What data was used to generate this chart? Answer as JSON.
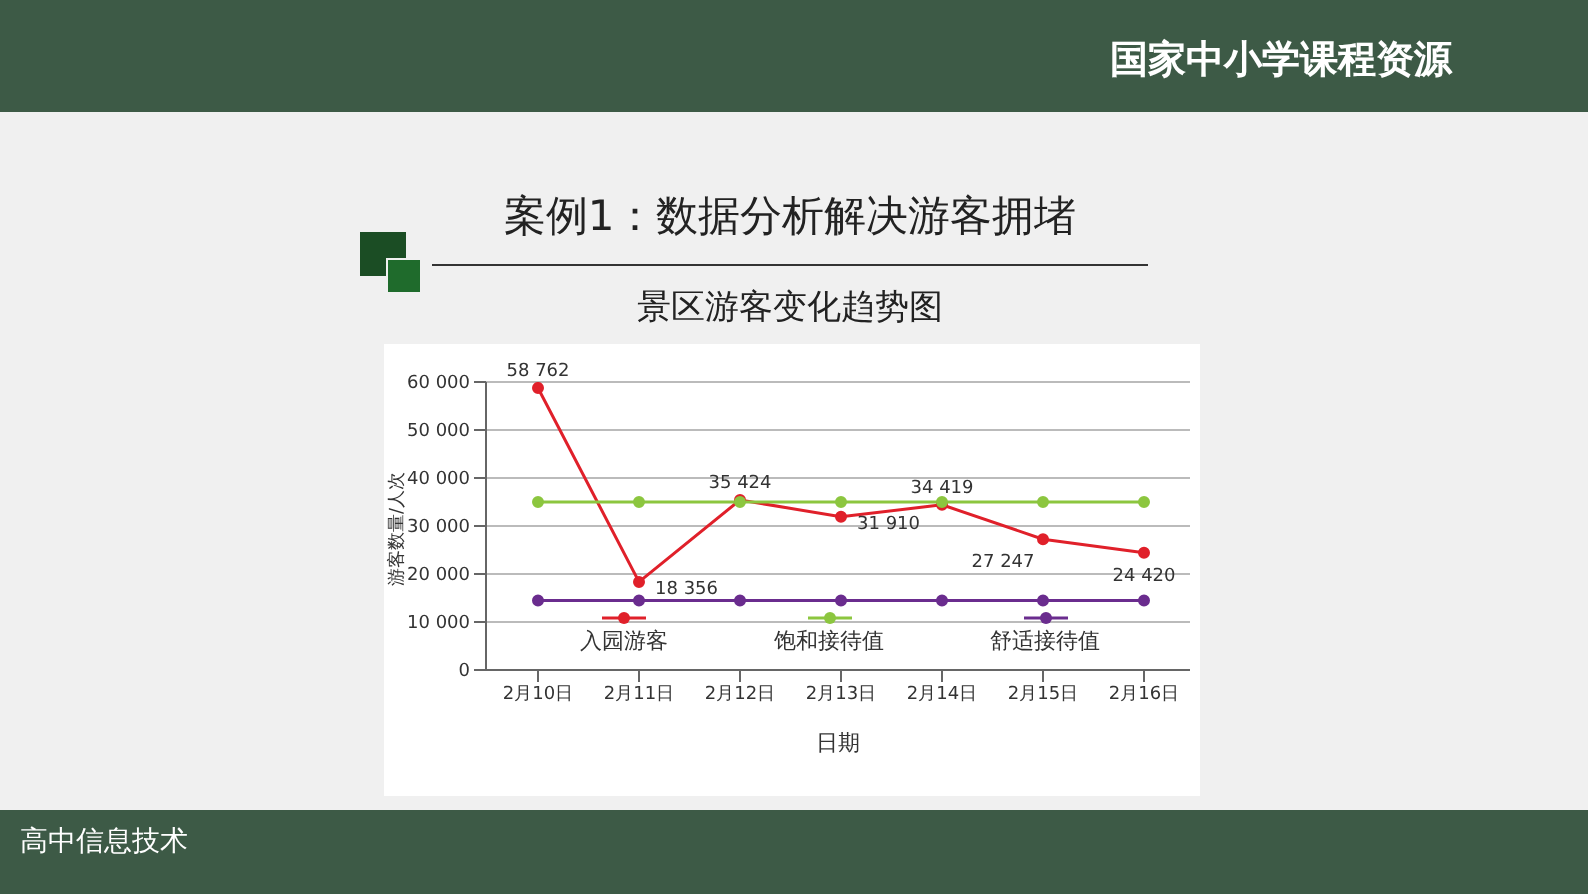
{
  "chart_data": {
    "type": "line",
    "title": "案例1：数据分析解决游客拥堵",
    "subtitle": "景区游客变化趋势图",
    "xlabel": "日期",
    "ylabel": "游客数量/人次",
    "annotations": [
      "国家中小学课程资源",
      "高中信息技术"
    ],
    "categories": [
      "2月10日",
      "2月11日",
      "2月12日",
      "2月13日",
      "2月14日",
      "2月15日",
      "2月16日"
    ],
    "series": [
      {
        "name": "入园游客",
        "color": "#e0202a",
        "values": [
          58762,
          18356,
          35424,
          31910,
          34419,
          27247,
          24420
        ],
        "value_labels": [
          "58 762",
          "18 356",
          "35 424",
          "31 910",
          "34 419",
          "27 247",
          "24 420"
        ]
      },
      {
        "name": "饱和接待值",
        "color": "#8cc63f",
        "values": [
          35000,
          35000,
          35000,
          35000,
          35000,
          35000,
          35000
        ]
      },
      {
        "name": "舒适接待值",
        "color": "#6a2c8e",
        "values": [
          14500,
          14500,
          14500,
          14500,
          14500,
          14500,
          14500
        ]
      }
    ],
    "ylim": [
      0,
      60000
    ],
    "yticks": [
      {
        "value": 0,
        "label": "0"
      },
      {
        "value": 10000,
        "label": "10 000"
      },
      {
        "value": 20000,
        "label": "20 000"
      },
      {
        "value": 30000,
        "label": "30 000"
      },
      {
        "value": 40000,
        "label": "40 000"
      },
      {
        "value": 50000,
        "label": "50 000"
      },
      {
        "value": 60000,
        "label": "60 000"
      }
    ],
    "grid": "y",
    "legend": "bottom",
    "marker": "circle",
    "line_style": "solid"
  }
}
